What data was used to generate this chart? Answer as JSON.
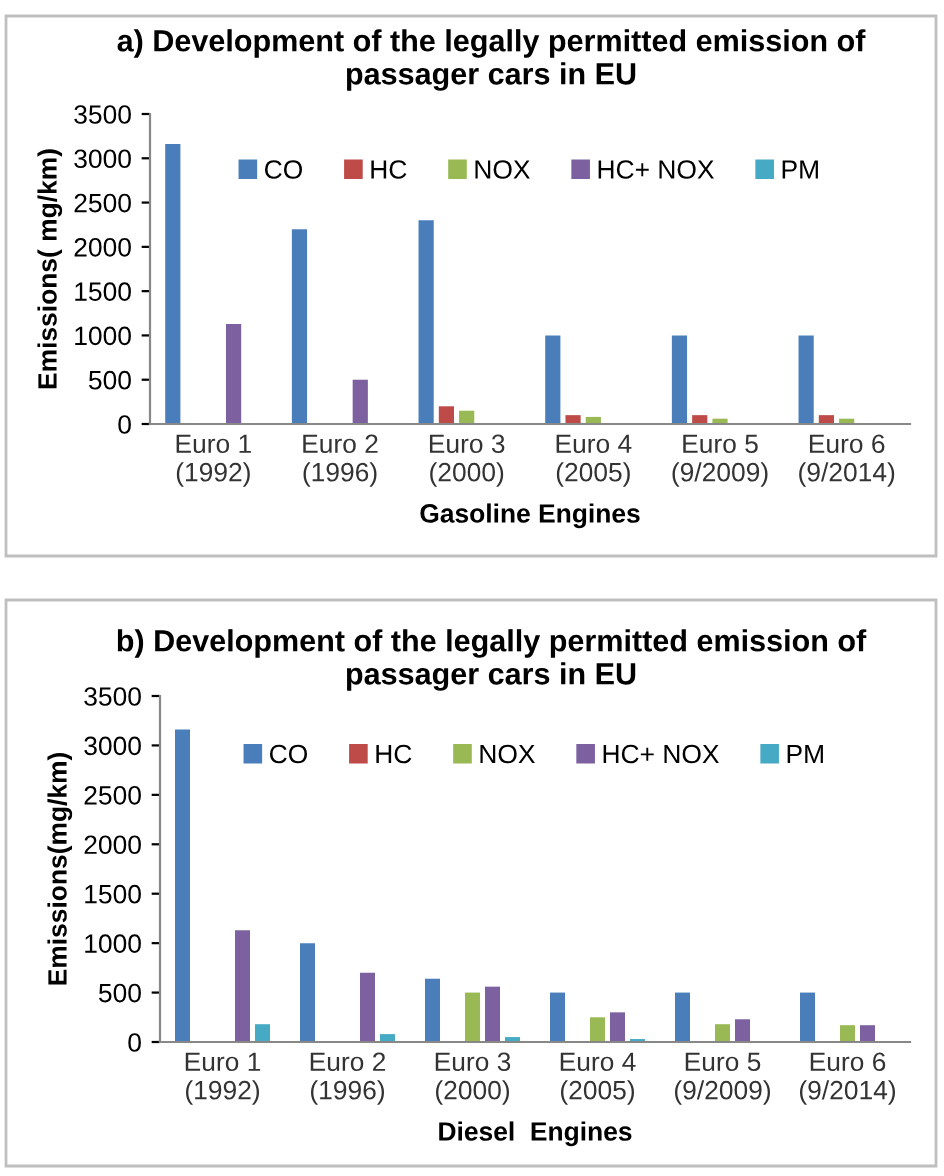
{
  "chart_data": [
    {
      "type": "bar",
      "title": "a) Development of the legally permitted emission of\npassager cars in EU",
      "xlabel": "Gasoline Engines",
      "ylabel": "Emissions( mg/km)",
      "categories": [
        "Euro 1\n(1992)",
        "Euro 2\n(1996)",
        "Euro 3\n(2000)",
        "Euro 4\n(2005)",
        "Euro 5\n(9/2009)",
        "Euro 6\n(9/2014)"
      ],
      "series": [
        {
          "name": "CO",
          "color": "#4a7ebb",
          "values": [
            3160,
            2200,
            2300,
            1000,
            1000,
            1000
          ]
        },
        {
          "name": "HC",
          "color": "#be4b48",
          "values": [
            null,
            null,
            200,
            100,
            100,
            100
          ]
        },
        {
          "name": "NOX",
          "color": "#98b954",
          "values": [
            null,
            null,
            150,
            80,
            60,
            60
          ]
        },
        {
          "name": "HC+ NOX",
          "color": "#7d60a0",
          "values": [
            1130,
            500,
            null,
            null,
            null,
            null
          ]
        },
        {
          "name": "PM",
          "color": "#46aac5",
          "values": [
            null,
            null,
            null,
            null,
            null,
            null
          ]
        }
      ],
      "ylim": [
        0,
        3500
      ],
      "yticks": [
        0,
        500,
        1000,
        1500,
        2000,
        2500,
        3000,
        3500
      ],
      "grid": false,
      "legend": "top"
    },
    {
      "type": "bar",
      "title": "b) Development of the legally permitted emission of\npassager cars in EU",
      "xlabel": "Diesel  Engines",
      "ylabel": "Emissions(mg/km)",
      "categories": [
        "Euro 1\n(1992)",
        "Euro 2\n(1996)",
        "Euro 3\n(2000)",
        "Euro 4\n(2005)",
        "Euro 5\n(9/2009)",
        "Euro 6\n(9/2014)"
      ],
      "series": [
        {
          "name": "CO",
          "color": "#4a7ebb",
          "values": [
            3160,
            1000,
            640,
            500,
            500,
            500
          ]
        },
        {
          "name": "HC",
          "color": "#be4b48",
          "values": [
            null,
            null,
            null,
            null,
            null,
            null
          ]
        },
        {
          "name": "NOX",
          "color": "#98b954",
          "values": [
            null,
            null,
            500,
            250,
            180,
            170
          ]
        },
        {
          "name": "HC+ NOX",
          "color": "#7d60a0",
          "values": [
            1130,
            700,
            560,
            300,
            230,
            170
          ]
        },
        {
          "name": "PM",
          "color": "#46aac5",
          "values": [
            180,
            80,
            50,
            30,
            null,
            null
          ]
        }
      ],
      "ylim": [
        0,
        3500
      ],
      "yticks": [
        0,
        500,
        1000,
        1500,
        2000,
        2500,
        3000,
        3500
      ],
      "grid": false,
      "legend": "top"
    }
  ]
}
